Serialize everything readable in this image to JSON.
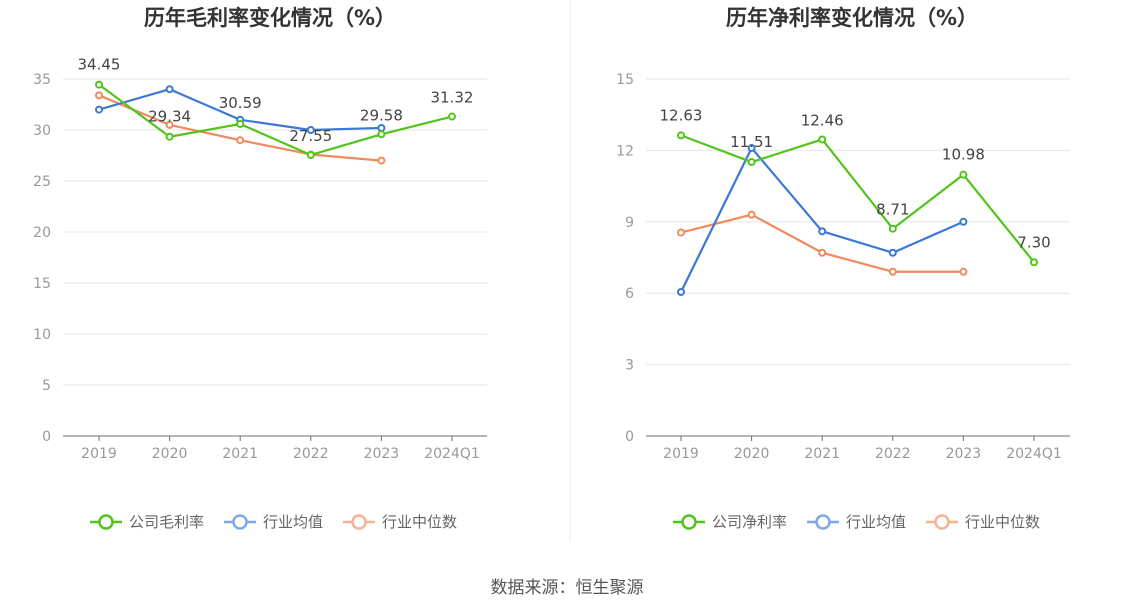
{
  "chart_data": [
    {
      "type": "line",
      "title": "历年毛利率变化情况（%）",
      "categories": [
        "2019",
        "2020",
        "2021",
        "2022",
        "2023",
        "2024Q1"
      ],
      "ylim": [
        0,
        35
      ],
      "yticks": [
        0,
        5,
        10,
        15,
        20,
        25,
        30,
        35
      ],
      "grid": true,
      "legend_position": "bottom",
      "series": [
        {
          "name": "公司毛利率",
          "color": "#52c41a",
          "values": [
            34.45,
            29.34,
            30.59,
            27.55,
            29.58,
            31.32
          ],
          "labels": [
            "34.45",
            "29.34",
            "30.59",
            "27.55",
            "29.58",
            "31.32"
          ]
        },
        {
          "name": "行业均值",
          "color": "#3a78d8",
          "values": [
            32.0,
            34.0,
            31.0,
            30.0,
            30.2,
            null
          ]
        },
        {
          "name": "行业中位数",
          "color": "#f08a5d",
          "values": [
            33.4,
            30.5,
            29.0,
            27.6,
            27.0,
            null
          ]
        }
      ]
    },
    {
      "type": "line",
      "title": "历年净利率变化情况（%）",
      "categories": [
        "2019",
        "2020",
        "2021",
        "2022",
        "2023",
        "2024Q1"
      ],
      "ylim": [
        0,
        15
      ],
      "yticks": [
        0,
        3,
        6,
        9,
        12,
        15
      ],
      "grid": true,
      "legend_position": "bottom",
      "series": [
        {
          "name": "公司净利率",
          "color": "#52c41a",
          "values": [
            12.63,
            11.51,
            12.46,
            8.71,
            10.98,
            7.3
          ],
          "labels": [
            "12.63",
            "11.51",
            "12.46",
            "8.71",
            "10.98",
            "7.30"
          ]
        },
        {
          "name": "行业均值",
          "color": "#3a78d8",
          "values": [
            6.05,
            12.1,
            8.6,
            7.7,
            9.0,
            null
          ]
        },
        {
          "name": "行业中位数",
          "color": "#f08a5d",
          "values": [
            8.55,
            9.3,
            7.7,
            6.9,
            6.9,
            null
          ]
        }
      ]
    }
  ],
  "footer": {
    "source": "数据来源：恒生聚源"
  },
  "colors": {
    "company": "#52c41a",
    "average": "#3a78d8",
    "median": "#f08a5d",
    "legend_average": "#7fa8ea",
    "legend_median": "#f6b394"
  }
}
